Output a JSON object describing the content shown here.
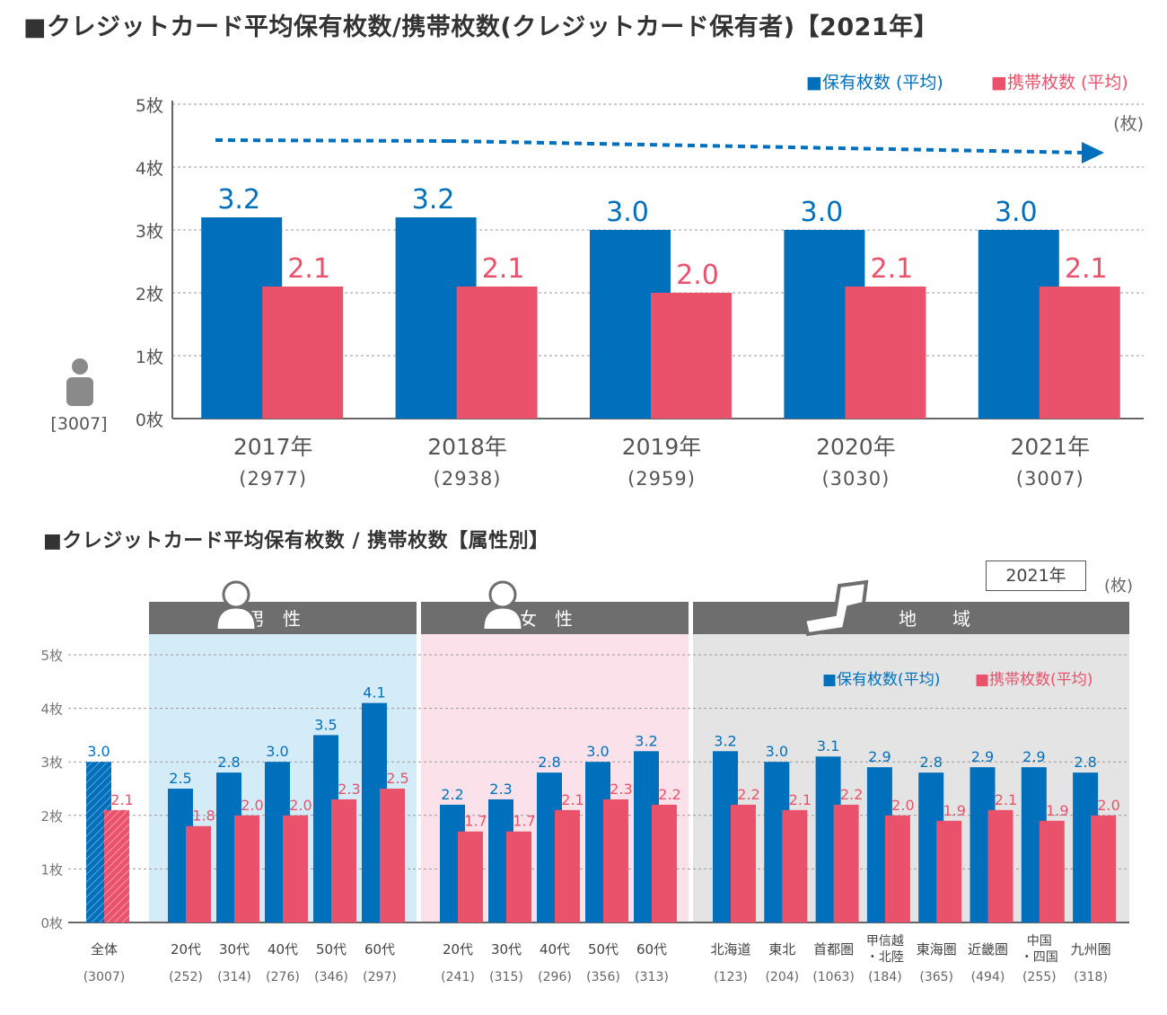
{
  "colors": {
    "blue": "#0070BC",
    "red": "#E9526A",
    "gray": "#6E6E6E",
    "male_bg": "#D4ECF8",
    "female_bg": "#FBE2EA",
    "region_bg": "#E4E4E4"
  },
  "title1": "■クレジットカード平均保有枚数/携帯枚数(クレジットカード保有者)【2021年】",
  "title2": "■クレジットカード平均保有枚数 / 携帯枚数【属性別】",
  "chart_data": [
    {
      "type": "bar",
      "legend": [
        "■保有枚数 (平均)",
        "■携帯枚数 (平均)"
      ],
      "unit": "(枚)",
      "y_ticks": [
        "0枚",
        "1枚",
        "2枚",
        "3枚",
        "4枚",
        "5枚"
      ],
      "ylim": [
        0,
        5
      ],
      "base_label": "[3007]",
      "categories": [
        "2017年",
        "2018年",
        "2019年",
        "2020年",
        "2021年"
      ],
      "sublabels": [
        "(2977)",
        "(2938)",
        "(2959)",
        "(3030)",
        "(3007)"
      ],
      "series": [
        {
          "name": "保有枚数 (平均)",
          "values": [
            3.2,
            3.2,
            3.0,
            3.0,
            3.0
          ],
          "labels": [
            "3.2",
            "3.2",
            "3.0",
            "3.0",
            "3.0"
          ]
        },
        {
          "name": "携帯枚数 (平均)",
          "values": [
            2.1,
            2.1,
            2.0,
            2.1,
            2.1
          ],
          "labels": [
            "2.1",
            "2.1",
            "2.0",
            "2.1",
            "2.1"
          ]
        }
      ],
      "trend": "dashed arrow"
    },
    {
      "type": "bar",
      "year": "2021年",
      "unit": "(枚)",
      "legend": [
        "■保有枚数(平均)",
        "■携帯枚数(平均)"
      ],
      "y_ticks": [
        "0枚",
        "1枚",
        "2枚",
        "3枚",
        "4枚",
        "5枚"
      ],
      "ylim": [
        0,
        5
      ],
      "groups": [
        {
          "header": "",
          "categories": [
            {
              "label": "全体",
              "n": "(3007)",
              "own": 3.0,
              "carry": 2.1,
              "own_label": "3.0",
              "carry_label": "2.1"
            }
          ]
        },
        {
          "header": "男　性",
          "categories": [
            {
              "label": "20代",
              "n": "(252)",
              "own": 2.5,
              "carry": 1.8,
              "own_label": "2.5",
              "carry_label": "1.8"
            },
            {
              "label": "30代",
              "n": "(314)",
              "own": 2.8,
              "carry": 2.0,
              "own_label": "2.8",
              "carry_label": "2.0"
            },
            {
              "label": "40代",
              "n": "(276)",
              "own": 3.0,
              "carry": 2.0,
              "own_label": "3.0",
              "carry_label": "2.0"
            },
            {
              "label": "50代",
              "n": "(346)",
              "own": 3.5,
              "carry": 2.3,
              "own_label": "3.5",
              "carry_label": "2.3"
            },
            {
              "label": "60代",
              "n": "(297)",
              "own": 4.1,
              "carry": 2.5,
              "own_label": "4.1",
              "carry_label": "2.5"
            }
          ]
        },
        {
          "header": "女　性",
          "categories": [
            {
              "label": "20代",
              "n": "(241)",
              "own": 2.2,
              "carry": 1.7,
              "own_label": "2.2",
              "carry_label": "1.7"
            },
            {
              "label": "30代",
              "n": "(315)",
              "own": 2.3,
              "carry": 1.7,
              "own_label": "2.3",
              "carry_label": "1.7"
            },
            {
              "label": "40代",
              "n": "(296)",
              "own": 2.8,
              "carry": 2.1,
              "own_label": "2.8",
              "carry_label": "2.1"
            },
            {
              "label": "50代",
              "n": "(356)",
              "own": 3.0,
              "carry": 2.3,
              "own_label": "3.0",
              "carry_label": "2.3"
            },
            {
              "label": "60代",
              "n": "(313)",
              "own": 3.2,
              "carry": 2.2,
              "own_label": "3.2",
              "carry_label": "2.2"
            }
          ]
        },
        {
          "header": "地　　域",
          "categories": [
            {
              "label": "北海道",
              "n": "(123)",
              "own": 3.2,
              "carry": 2.2,
              "own_label": "3.2",
              "carry_label": "2.2"
            },
            {
              "label": "東北",
              "n": "(204)",
              "own": 3.0,
              "carry": 2.1,
              "own_label": "3.0",
              "carry_label": "2.1"
            },
            {
              "label": "首都圏",
              "n": "(1063)",
              "own": 3.1,
              "carry": 2.2,
              "own_label": "3.1",
              "carry_label": "2.2"
            },
            {
              "label": "甲信越\n・北陸",
              "n": "(184)",
              "own": 2.9,
              "carry": 2.0,
              "own_label": "2.9",
              "carry_label": "2.0"
            },
            {
              "label": "東海圏",
              "n": "(365)",
              "own": 2.8,
              "carry": 1.9,
              "own_label": "2.8",
              "carry_label": "1.9"
            },
            {
              "label": "近畿圏",
              "n": "(494)",
              "own": 2.9,
              "carry": 2.1,
              "own_label": "2.9",
              "carry_label": "2.1"
            },
            {
              "label": "中国\n・四国",
              "n": "(255)",
              "own": 2.9,
              "carry": 1.9,
              "own_label": "2.9",
              "carry_label": "1.9"
            },
            {
              "label": "九州圏",
              "n": "(318)",
              "own": 2.8,
              "carry": 2.0,
              "own_label": "2.8",
              "carry_label": "2.0"
            }
          ]
        }
      ]
    }
  ]
}
